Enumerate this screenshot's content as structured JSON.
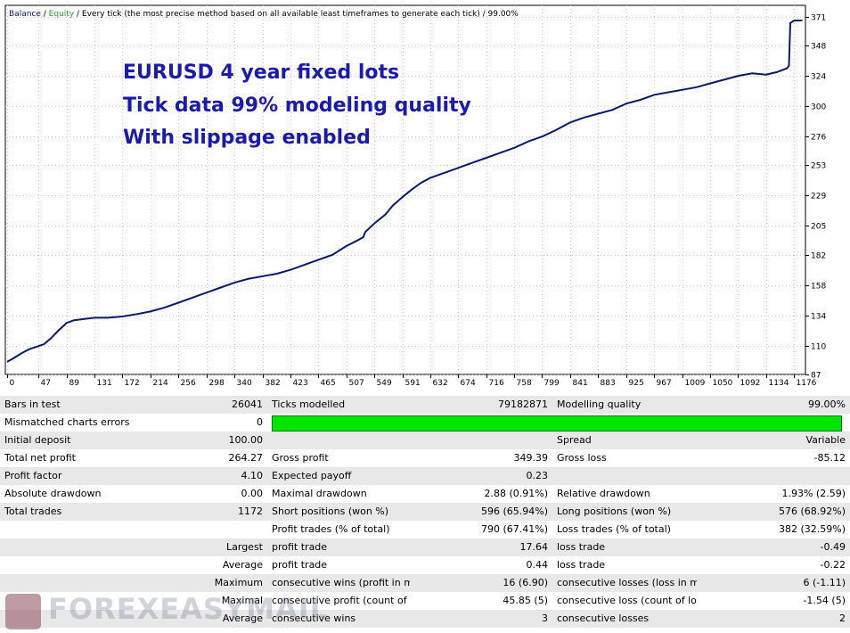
{
  "chart": {
    "header": {
      "balance": "Balance",
      "separator": " / ",
      "equity": "Equity",
      "description": " / Every tick (the most precise method based on all available least timeframes to generate each tick)",
      "quality": " / 99.00%"
    },
    "annotation": [
      "EURUSD 4 year fixed lots",
      "Tick data 99% modeling quality",
      "With slippage enabled"
    ],
    "colors": {
      "balance": "#0a1a6a",
      "equity": "#28a028",
      "annotation": "#1a1ab0",
      "grid": "#c8c8c8"
    }
  },
  "chart_data": {
    "type": "line",
    "series": [
      {
        "name": "Balance",
        "values": [
          [
            0,
            97
          ],
          [
            10,
            100
          ],
          [
            22,
            104
          ],
          [
            33,
            107
          ],
          [
            44,
            109
          ],
          [
            55,
            111
          ],
          [
            66,
            116
          ],
          [
            77,
            122
          ],
          [
            89,
            128
          ],
          [
            100,
            130
          ],
          [
            115,
            131
          ],
          [
            131,
            132
          ],
          [
            150,
            132
          ],
          [
            172,
            133
          ],
          [
            195,
            135
          ],
          [
            214,
            137
          ],
          [
            235,
            140
          ],
          [
            256,
            144
          ],
          [
            277,
            148
          ],
          [
            298,
            152
          ],
          [
            319,
            156
          ],
          [
            340,
            160
          ],
          [
            361,
            163
          ],
          [
            382,
            165
          ],
          [
            403,
            167
          ],
          [
            423,
            170
          ],
          [
            444,
            174
          ],
          [
            465,
            178
          ],
          [
            486,
            182
          ],
          [
            507,
            189
          ],
          [
            522,
            193
          ],
          [
            532,
            196
          ],
          [
            535,
            200
          ],
          [
            549,
            207
          ],
          [
            565,
            214
          ],
          [
            576,
            221
          ],
          [
            591,
            228
          ],
          [
            605,
            234
          ],
          [
            618,
            239
          ],
          [
            632,
            243
          ],
          [
            653,
            247
          ],
          [
            674,
            251
          ],
          [
            695,
            255
          ],
          [
            716,
            259
          ],
          [
            737,
            263
          ],
          [
            758,
            267
          ],
          [
            779,
            272
          ],
          [
            800,
            276
          ],
          [
            820,
            281
          ],
          [
            841,
            287
          ],
          [
            862,
            291
          ],
          [
            883,
            294
          ],
          [
            904,
            297
          ],
          [
            925,
            302
          ],
          [
            946,
            305
          ],
          [
            967,
            309
          ],
          [
            988,
            311
          ],
          [
            1009,
            313
          ],
          [
            1030,
            315
          ],
          [
            1050,
            318
          ],
          [
            1071,
            321
          ],
          [
            1092,
            324
          ],
          [
            1113,
            326
          ],
          [
            1134,
            325
          ],
          [
            1150,
            327
          ],
          [
            1165,
            330
          ],
          [
            1168,
            332
          ],
          [
            1170,
            366
          ],
          [
            1176,
            368
          ],
          [
            1188,
            368
          ]
        ]
      }
    ],
    "x_ticks": [
      0,
      47,
      89,
      131,
      172,
      214,
      256,
      298,
      340,
      382,
      423,
      465,
      507,
      549,
      591,
      632,
      674,
      716,
      758,
      799,
      841,
      883,
      925,
      967,
      1009,
      1050,
      1092,
      1134,
      1176
    ],
    "y_ticks": [
      87,
      110,
      134,
      158,
      182,
      205,
      229,
      253,
      276,
      300,
      324,
      348,
      371
    ],
    "xlim": [
      0,
      1190
    ],
    "ylim": [
      87,
      380
    ],
    "grid": true
  },
  "report": {
    "rows": [
      {
        "cells": [
          {
            "t": "Bars in test"
          },
          {
            "t": "26041",
            "a": "r"
          },
          {
            "t": "Ticks modelled"
          },
          {
            "t": "79182871",
            "a": "r"
          },
          {
            "t": "Modelling quality"
          },
          {
            "t": "99.00%",
            "a": "r"
          }
        ]
      },
      {
        "cells": [
          {
            "t": "Mismatched charts errors"
          },
          {
            "t": "0",
            "a": "r"
          },
          {
            "bar": true,
            "span": 4,
            "value": 0.99
          }
        ]
      },
      {
        "cells": [
          {
            "t": "Initial deposit"
          },
          {
            "t": "100.00",
            "a": "r"
          },
          {
            "t": ""
          },
          {
            "t": ""
          },
          {
            "t": "Spread"
          },
          {
            "t": "Variable",
            "a": "r"
          }
        ]
      },
      {
        "cells": [
          {
            "t": "Total net profit"
          },
          {
            "t": "264.27",
            "a": "r"
          },
          {
            "t": "Gross profit"
          },
          {
            "t": "349.39",
            "a": "r"
          },
          {
            "t": "Gross loss"
          },
          {
            "t": "-85.12",
            "a": "r"
          }
        ]
      },
      {
        "cells": [
          {
            "t": "Profit factor"
          },
          {
            "t": "4.10",
            "a": "r"
          },
          {
            "t": "Expected payoff"
          },
          {
            "t": "0.23",
            "a": "r"
          },
          {
            "t": ""
          },
          {
            "t": ""
          }
        ]
      },
      {
        "cells": [
          {
            "t": "Absolute drawdown"
          },
          {
            "t": "0.00",
            "a": "r"
          },
          {
            "t": "Maximal drawdown"
          },
          {
            "t": "2.88 (0.91%)",
            "a": "r"
          },
          {
            "t": "Relative drawdown"
          },
          {
            "t": "1.93% (2.59)",
            "a": "r"
          }
        ]
      },
      {
        "cells": [
          {
            "t": "Total trades"
          },
          {
            "t": "1172",
            "a": "r"
          },
          {
            "t": "Short positions (won %)"
          },
          {
            "t": "596 (65.94%)",
            "a": "r"
          },
          {
            "t": "Long positions (won %)"
          },
          {
            "t": "576 (68.92%)",
            "a": "r"
          }
        ]
      },
      {
        "cells": [
          {
            "t": ""
          },
          {
            "t": ""
          },
          {
            "t": "Profit trades (% of total)"
          },
          {
            "t": "790 (67.41%)",
            "a": "r"
          },
          {
            "t": "Loss trades (% of total)"
          },
          {
            "t": "382 (32.59%)",
            "a": "r"
          }
        ]
      },
      {
        "cells": [
          {
            "t": ""
          },
          {
            "t": "Largest",
            "a": "r"
          },
          {
            "t": "profit trade"
          },
          {
            "t": "17.64",
            "a": "r"
          },
          {
            "t": "loss trade"
          },
          {
            "t": "-0.49",
            "a": "r"
          }
        ]
      },
      {
        "cells": [
          {
            "t": ""
          },
          {
            "t": "Average",
            "a": "r"
          },
          {
            "t": "profit trade"
          },
          {
            "t": "0.44",
            "a": "r"
          },
          {
            "t": "loss trade"
          },
          {
            "t": "-0.22",
            "a": "r"
          }
        ]
      },
      {
        "cells": [
          {
            "t": ""
          },
          {
            "t": "Maximum",
            "a": "r"
          },
          {
            "t": "consecutive wins (profit in mon..."
          },
          {
            "t": "16 (6.90)",
            "a": "r"
          },
          {
            "t": "consecutive losses (loss in money)"
          },
          {
            "t": "6 (-1.11)",
            "a": "r"
          }
        ]
      },
      {
        "cells": [
          {
            "t": ""
          },
          {
            "t": "Maximal",
            "a": "r"
          },
          {
            "t": "consecutive profit (count of wins)"
          },
          {
            "t": "45.85 (5)",
            "a": "r"
          },
          {
            "t": "consecutive loss (count of losses)"
          },
          {
            "t": "-1.54 (5)",
            "a": "r"
          }
        ]
      },
      {
        "cells": [
          {
            "t": ""
          },
          {
            "t": "Average",
            "a": "r"
          },
          {
            "t": "consecutive wins"
          },
          {
            "t": "3",
            "a": "r"
          },
          {
            "t": "consecutive losses"
          },
          {
            "t": "2",
            "a": "r"
          }
        ]
      }
    ]
  },
  "watermark": {
    "text": "FOREXEASYMAIL"
  }
}
